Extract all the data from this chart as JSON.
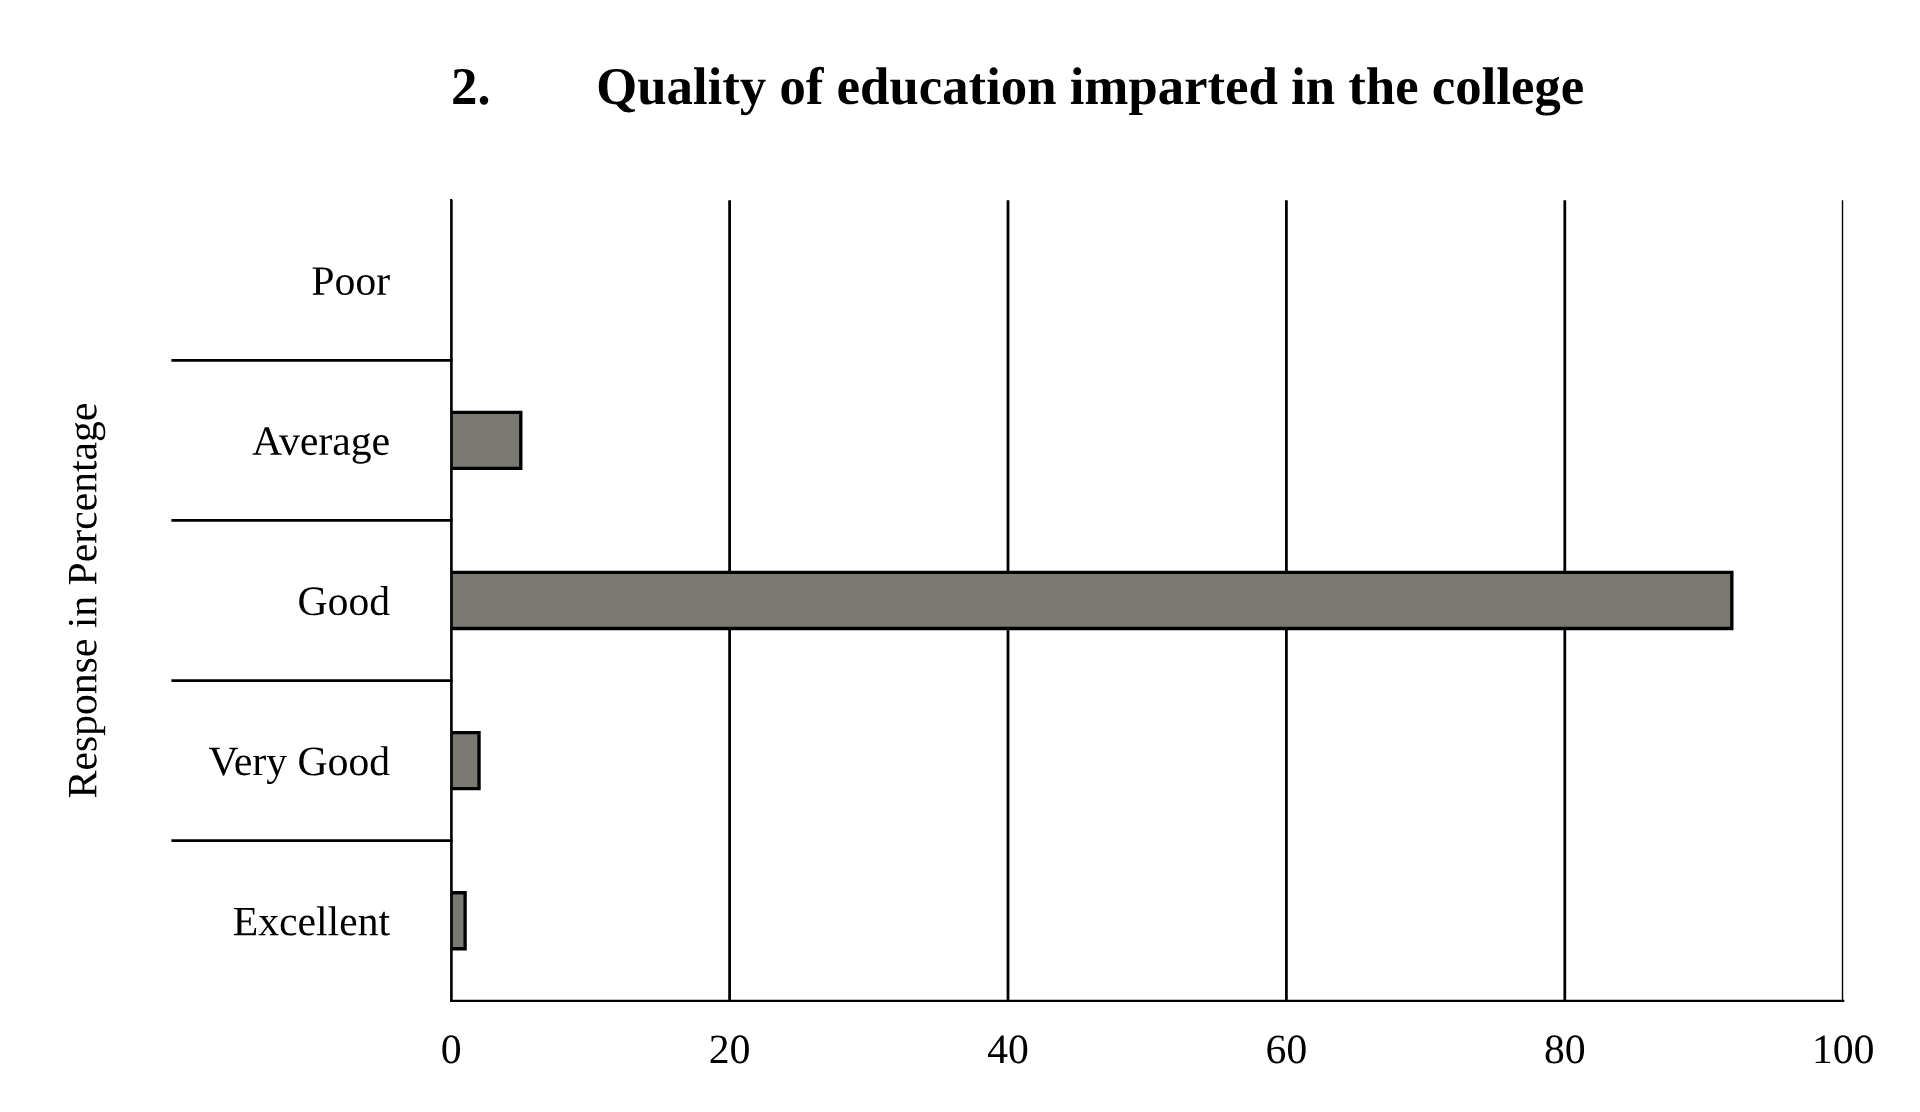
{
  "chart_data": {
    "type": "bar",
    "orientation": "horizontal",
    "title": "2.        Quality of education imparted in the college",
    "ylabel": "Response in Percentage",
    "categories": [
      "Poor",
      "Average",
      "Good",
      "Very Good",
      "Excellent"
    ],
    "values": [
      0,
      5,
      92,
      2,
      1
    ],
    "color": "#7a7a72",
    "xlim": [
      0,
      100
    ],
    "xticks": [
      0,
      20,
      40,
      60,
      80,
      100
    ],
    "grid": "x",
    "legend": false
  }
}
